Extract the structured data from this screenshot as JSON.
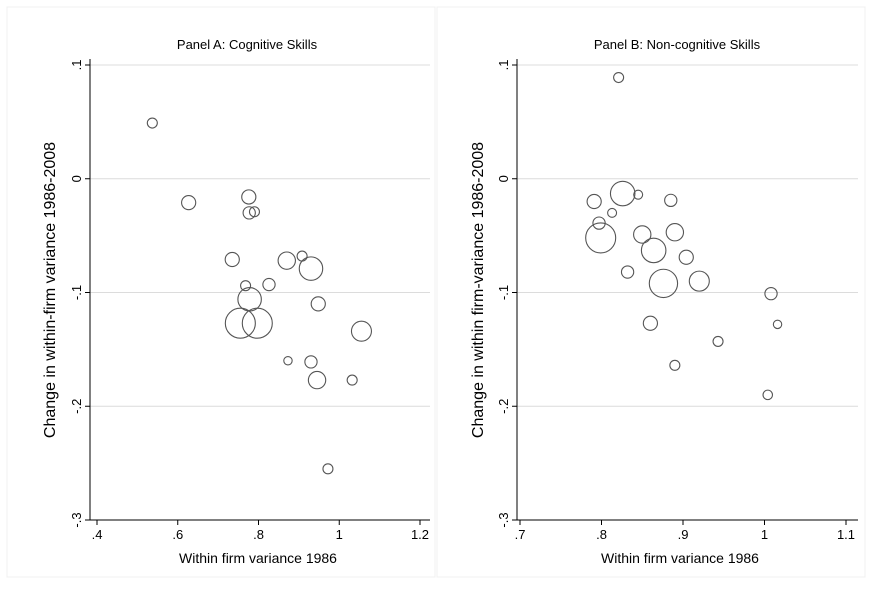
{
  "chart_data": [
    {
      "type": "scatter",
      "title": "Panel A: Cognitive Skills",
      "xlabel": "Within firm variance 1986",
      "ylabel": "Change in within-firm variance 1986-2008",
      "xlim": [
        0.4,
        1.2
      ],
      "ylim": [
        -0.3,
        0.1
      ],
      "xticks": [
        0.4,
        0.6,
        0.8,
        1.0,
        1.2
      ],
      "xtick_labels": [
        ".4",
        ".6",
        ".8",
        "1",
        "1.2"
      ],
      "yticks": [
        -0.3,
        -0.2,
        -0.1,
        0.0,
        0.1
      ],
      "ytick_labels": [
        "-.3",
        "-.2",
        "-.1",
        "0",
        ".1"
      ],
      "grid": "horizontal",
      "marker_size_note": "circle area proportional to weight",
      "points": [
        {
          "x": 0.537,
          "y": 0.049,
          "w": 1
        },
        {
          "x": 0.627,
          "y": -0.021,
          "w": 2
        },
        {
          "x": 0.776,
          "y": -0.016,
          "w": 2
        },
        {
          "x": 0.777,
          "y": -0.03,
          "w": 1.5
        },
        {
          "x": 0.79,
          "y": -0.029,
          "w": 1
        },
        {
          "x": 0.735,
          "y": -0.071,
          "w": 2
        },
        {
          "x": 0.908,
          "y": -0.068,
          "w": 1
        },
        {
          "x": 0.87,
          "y": -0.072,
          "w": 3
        },
        {
          "x": 0.93,
          "y": -0.079,
          "w": 5.5
        },
        {
          "x": 0.826,
          "y": -0.093,
          "w": 1.5
        },
        {
          "x": 0.768,
          "y": -0.094,
          "w": 1
        },
        {
          "x": 0.778,
          "y": -0.106,
          "w": 5.5
        },
        {
          "x": 0.948,
          "y": -0.11,
          "w": 2
        },
        {
          "x": 0.755,
          "y": -0.127,
          "w": 9
        },
        {
          "x": 0.797,
          "y": -0.127,
          "w": 9
        },
        {
          "x": 1.055,
          "y": -0.134,
          "w": 4
        },
        {
          "x": 0.873,
          "y": -0.16,
          "w": 0.7
        },
        {
          "x": 0.93,
          "y": -0.161,
          "w": 1.5
        },
        {
          "x": 0.945,
          "y": -0.177,
          "w": 3
        },
        {
          "x": 1.032,
          "y": -0.177,
          "w": 1
        },
        {
          "x": 0.972,
          "y": -0.255,
          "w": 1
        }
      ]
    },
    {
      "type": "scatter",
      "title": "Panel B: Non-cognitive Skills",
      "xlabel": "Within firm variance 1986",
      "ylabel": "Change in within firm-variance 1986-2008",
      "xlim": [
        0.7,
        1.1
      ],
      "ylim": [
        -0.3,
        0.1
      ],
      "xticks": [
        0.7,
        0.8,
        0.9,
        1.0,
        1.1
      ],
      "xtick_labels": [
        ".7",
        ".8",
        ".9",
        "1",
        "1.1"
      ],
      "yticks": [
        -0.3,
        -0.2,
        -0.1,
        0.0,
        0.1
      ],
      "ytick_labels": [
        "-.3",
        "-.2",
        "-.1",
        "0",
        ".1"
      ],
      "grid": "horizontal",
      "marker_size_note": "circle area proportional to weight",
      "points": [
        {
          "x": 0.821,
          "y": 0.089,
          "w": 1
        },
        {
          "x": 0.826,
          "y": -0.013,
          "w": 6
        },
        {
          "x": 0.845,
          "y": -0.014,
          "w": 0.8
        },
        {
          "x": 0.791,
          "y": -0.02,
          "w": 2
        },
        {
          "x": 0.885,
          "y": -0.019,
          "w": 1.5
        },
        {
          "x": 0.813,
          "y": -0.03,
          "w": 0.8
        },
        {
          "x": 0.797,
          "y": -0.039,
          "w": 1.5
        },
        {
          "x": 0.89,
          "y": -0.047,
          "w": 3
        },
        {
          "x": 0.85,
          "y": -0.049,
          "w": 3
        },
        {
          "x": 0.799,
          "y": -0.052,
          "w": 9
        },
        {
          "x": 0.864,
          "y": -0.063,
          "w": 6
        },
        {
          "x": 0.904,
          "y": -0.069,
          "w": 2
        },
        {
          "x": 0.832,
          "y": -0.082,
          "w": 1.5
        },
        {
          "x": 0.876,
          "y": -0.092,
          "w": 8
        },
        {
          "x": 0.92,
          "y": -0.09,
          "w": 4
        },
        {
          "x": 1.008,
          "y": -0.101,
          "w": 1.5
        },
        {
          "x": 0.86,
          "y": -0.127,
          "w": 2
        },
        {
          "x": 1.016,
          "y": -0.128,
          "w": 0.7
        },
        {
          "x": 0.943,
          "y": -0.143,
          "w": 1
        },
        {
          "x": 0.89,
          "y": -0.164,
          "w": 1
        },
        {
          "x": 1.004,
          "y": -0.19,
          "w": 0.9
        }
      ]
    }
  ]
}
